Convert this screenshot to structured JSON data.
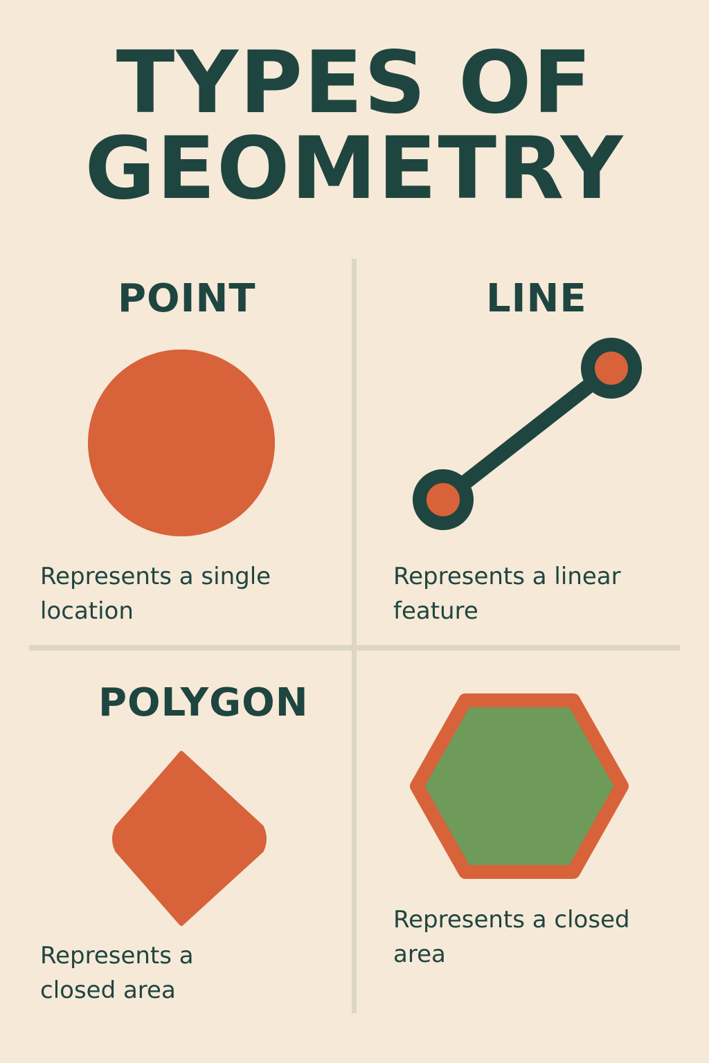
{
  "title": {
    "line1": "TYPES OF",
    "line2": "GEOMETRY"
  },
  "panels": {
    "point": {
      "heading": "POINT",
      "description_line1": "Represents a single",
      "description_line2": "location"
    },
    "line": {
      "heading": "LINE",
      "description_line1": "Represents a linear",
      "description_line2": "feature"
    },
    "polygon": {
      "heading": "POLYGON",
      "description_line1": "Represents a",
      "description_line2": "closed area"
    },
    "polygon_hexagon": {
      "description_line1": "Represents a closed",
      "description_line2": "area"
    }
  },
  "colors": {
    "background": "#f6e9d8",
    "text": "#1f4540",
    "accent_orange": "#d8623a",
    "accent_green": "#6e9a5a",
    "divider": "#ded7bf"
  }
}
